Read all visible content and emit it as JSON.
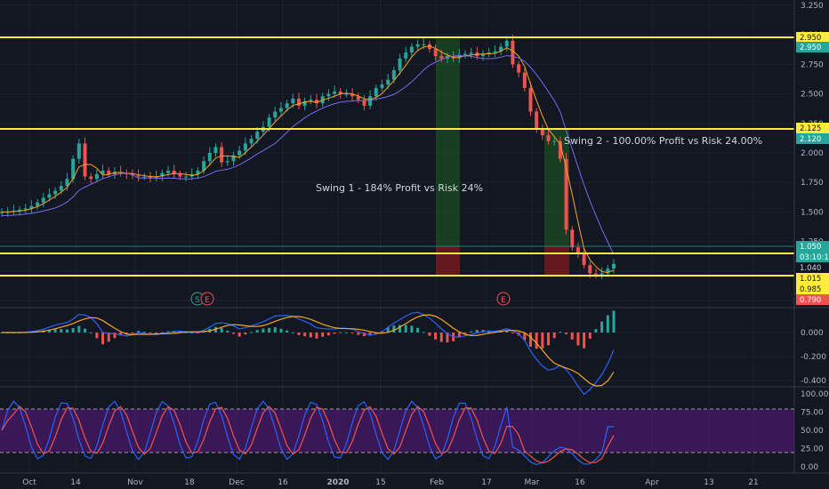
{
  "chart_data": [
    {
      "type": "candlestick",
      "title": "",
      "ylim": [
        0.75,
        3.25
      ],
      "y_ticks": [
        "3.250",
        "3.000",
        "2.750",
        "2.500",
        "2.250",
        "2.000",
        "1.750",
        "1.500",
        "1.250",
        "1.000",
        "0.750"
      ],
      "x_ticks": [
        "Oct",
        "14",
        "Nov",
        "18",
        "Dec",
        "16",
        "2020",
        "15",
        "Feb",
        "17",
        "Mar",
        "16",
        "Apr",
        "13",
        "21"
      ],
      "price_series": [
        1.5,
        1.5,
        1.51,
        1.52,
        1.53,
        1.55,
        1.58,
        1.62,
        1.65,
        1.68,
        1.72,
        1.78,
        1.95,
        2.08,
        1.8,
        1.78,
        1.82,
        1.85,
        1.82,
        1.84,
        1.83,
        1.82,
        1.81,
        1.8,
        1.8,
        1.79,
        1.8,
        1.83,
        1.85,
        1.82,
        1.8,
        1.8,
        1.82,
        1.85,
        1.93,
        2.0,
        2.05,
        1.92,
        1.93,
        1.98,
        2.02,
        2.08,
        2.12,
        2.18,
        2.22,
        2.3,
        2.35,
        2.38,
        2.42,
        2.46,
        2.4,
        2.44,
        2.45,
        2.42,
        2.48,
        2.5,
        2.52,
        2.5,
        2.5,
        2.48,
        2.45,
        2.4,
        2.48,
        2.55,
        2.58,
        2.62,
        2.7,
        2.8,
        2.85,
        2.9,
        2.92,
        2.92,
        2.88,
        2.82,
        2.8,
        2.82,
        2.8,
        2.83,
        2.84,
        2.85,
        2.82,
        2.84,
        2.85,
        2.86,
        2.9,
        2.95,
        2.75,
        2.68,
        2.55,
        2.35,
        2.2,
        2.15,
        2.1,
        2.1,
        1.95,
        1.35,
        1.2,
        1.15,
        1.05,
        0.98,
        0.97,
        0.98,
        1.02,
        1.06
      ],
      "horizontal_lines": [
        {
          "price": 2.95,
          "label": "2.950"
        },
        {
          "price": 2.125,
          "label": "2.125"
        },
        {
          "price": 1.015,
          "label": "1.015"
        },
        {
          "price": 0.985,
          "label": "0.985"
        }
      ],
      "price_labels": [
        {
          "value": "2.950",
          "color": "#ffeb3b",
          "text_color": "#131722"
        },
        {
          "value": "2.950",
          "color": "#26a69a",
          "text_color": "#ffffff"
        },
        {
          "value": "2.125",
          "color": "#ffeb3b",
          "text_color": "#131722"
        },
        {
          "value": "2.120",
          "color": "#26a69a",
          "text_color": "#ffffff"
        },
        {
          "value": "1.050",
          "color": "#26a69a",
          "text_color": "#ffffff"
        },
        {
          "value": "03:10:10",
          "color": "#26a69a",
          "text_color": "#ffffff"
        },
        {
          "value": "1.040",
          "color": "#131722",
          "text_color": "#d1d4dc"
        },
        {
          "value": "1.015",
          "color": "#ffeb3b",
          "text_color": "#131722"
        },
        {
          "value": "0.985",
          "color": "#ffeb3b",
          "text_color": "#131722"
        },
        {
          "value": "0.790",
          "color": "#ef5350",
          "text_color": "#ffffff"
        }
      ],
      "annotations": [
        {
          "text": "Swing 1 - 184% Profit vs Risk 24%",
          "color": "#d1d4dc"
        },
        {
          "text": "Swing 2 - 100.00% Profit vs Risk 24.00%",
          "color": "#d1d4dc"
        }
      ],
      "markers": [
        "S",
        "E",
        "E"
      ],
      "colors": {
        "up": "#26a69a",
        "down": "#ef5350",
        "ma_fast": "#f5a623",
        "ma_slow": "#7b68ee",
        "level": "#ffeb3b",
        "current": "#26a69a"
      }
    },
    {
      "type": "macd",
      "y_ticks": [
        "0.000",
        "-0.200",
        "-0.400"
      ],
      "ylim": [
        -0.42,
        0.12
      ]
    },
    {
      "type": "stochastic",
      "y_ticks": [
        "100.00",
        "75.00",
        "50.00",
        "25.00",
        "0.00"
      ],
      "ylim": [
        0,
        100
      ],
      "overbought": 80,
      "oversold": 20
    }
  ]
}
